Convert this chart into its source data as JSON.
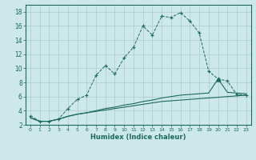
{
  "xlabel": "Humidex (Indice chaleur)",
  "bg_color": "#cce8e8",
  "grid_color": "#aacccc",
  "line_color": "#1a6b5a",
  "xlim": [
    -0.5,
    23.5
  ],
  "ylim": [
    2,
    19
  ],
  "xticks": [
    0,
    1,
    2,
    3,
    4,
    5,
    6,
    7,
    8,
    9,
    10,
    11,
    12,
    13,
    14,
    15,
    16,
    17,
    18,
    19,
    20,
    21,
    22,
    23
  ],
  "yticks": [
    2,
    4,
    6,
    8,
    10,
    12,
    14,
    16,
    18
  ],
  "series": [
    {
      "x": [
        0,
        1,
        2,
        3,
        4,
        5,
        6,
        7,
        8,
        9,
        10,
        11,
        12,
        13,
        14,
        15,
        16,
        17,
        18,
        19,
        20,
        21,
        22,
        23
      ],
      "y": [
        3.3,
        2.5,
        2.5,
        2.8,
        4.3,
        5.6,
        6.2,
        9.0,
        10.4,
        9.2,
        11.5,
        13.0,
        16.0,
        14.7,
        17.4,
        17.2,
        17.9,
        16.7,
        15.0,
        9.6,
        8.5,
        8.2,
        6.3,
        6.2
      ],
      "marker": "+",
      "linestyle": "--"
    },
    {
      "x": [
        0,
        1,
        2,
        3,
        4,
        5,
        6,
        7,
        8,
        9,
        10,
        11,
        12,
        13,
        14,
        15,
        16,
        17,
        18,
        19,
        20,
        21,
        22,
        23
      ],
      "y": [
        3.0,
        2.5,
        2.5,
        2.8,
        3.2,
        3.5,
        3.7,
        4.0,
        4.3,
        4.5,
        4.8,
        5.0,
        5.3,
        5.5,
        5.8,
        6.0,
        6.2,
        6.3,
        6.4,
        6.5,
        8.5,
        6.6,
        6.5,
        6.4
      ],
      "marker": "^",
      "marker_x": [
        20
      ],
      "linestyle": "-"
    },
    {
      "x": [
        0,
        1,
        2,
        3,
        4,
        5,
        6,
        7,
        8,
        9,
        10,
        11,
        12,
        13,
        14,
        15,
        16,
        17,
        18,
        19,
        20,
        21,
        22,
        23
      ],
      "y": [
        3.0,
        2.5,
        2.5,
        2.8,
        3.2,
        3.5,
        3.7,
        3.9,
        4.1,
        4.3,
        4.5,
        4.7,
        4.9,
        5.1,
        5.3,
        5.4,
        5.5,
        5.6,
        5.7,
        5.8,
        5.9,
        6.0,
        6.1,
        6.2
      ],
      "marker": "",
      "linestyle": "-"
    }
  ]
}
